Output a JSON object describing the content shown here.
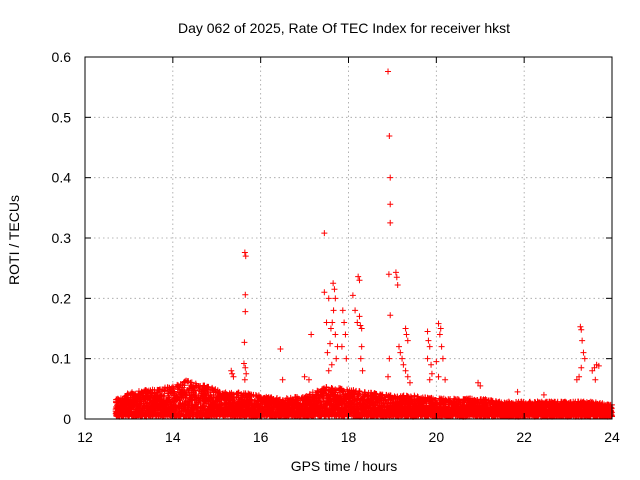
{
  "chart_data": {
    "type": "scatter",
    "title": "Day 062 of 2025, Rate Of TEC Index for receiver hkst",
    "xlabel": "GPS time / hours",
    "ylabel": "ROTI / TECUs",
    "xlim": [
      12,
      24
    ],
    "ylim": [
      0,
      0.6
    ],
    "xticks": [
      12,
      14,
      16,
      18,
      20,
      22,
      24
    ],
    "yticks": [
      0,
      0.1,
      0.2,
      0.3,
      0.4,
      0.5,
      0.6
    ],
    "xtick_labels": [
      "12",
      "14",
      "16",
      "18",
      "20",
      "22",
      "24"
    ],
    "ytick_labels": [
      "0",
      "0.1",
      "0.2",
      "0.3",
      "0.4",
      "0.5",
      "0.6"
    ],
    "grid": true,
    "marker": "+",
    "color": "#ff0000",
    "series": [
      {
        "name": "hkst",
        "baseline_envelope": [
          [
            12.7,
            0.03
          ],
          [
            13.0,
            0.04
          ],
          [
            13.5,
            0.045
          ],
          [
            14.0,
            0.05
          ],
          [
            14.3,
            0.06
          ],
          [
            14.8,
            0.05
          ],
          [
            15.2,
            0.04
          ],
          [
            15.6,
            0.04
          ],
          [
            16.0,
            0.035
          ],
          [
            16.5,
            0.03
          ],
          [
            17.0,
            0.035
          ],
          [
            17.5,
            0.05
          ],
          [
            18.0,
            0.045
          ],
          [
            18.5,
            0.04
          ],
          [
            19.0,
            0.035
          ],
          [
            19.5,
            0.035
          ],
          [
            20.0,
            0.03
          ],
          [
            20.5,
            0.03
          ],
          [
            21.0,
            0.03
          ],
          [
            21.5,
            0.025
          ],
          [
            22.0,
            0.025
          ],
          [
            22.5,
            0.025
          ],
          [
            23.0,
            0.025
          ],
          [
            23.5,
            0.025
          ],
          [
            24.0,
            0.02
          ]
        ],
        "points": [
          [
            15.33,
            0.08
          ],
          [
            15.35,
            0.075
          ],
          [
            15.38,
            0.07
          ],
          [
            15.64,
            0.276
          ],
          [
            15.66,
            0.27
          ],
          [
            15.65,
            0.206
          ],
          [
            15.65,
            0.178
          ],
          [
            15.63,
            0.127
          ],
          [
            15.62,
            0.092
          ],
          [
            15.65,
            0.085
          ],
          [
            15.67,
            0.075
          ],
          [
            15.64,
            0.065
          ],
          [
            16.45,
            0.116
          ],
          [
            16.5,
            0.065
          ],
          [
            17.0,
            0.07
          ],
          [
            17.1,
            0.065
          ],
          [
            17.15,
            0.14
          ],
          [
            17.45,
            0.308
          ],
          [
            17.45,
            0.21
          ],
          [
            17.5,
            0.16
          ],
          [
            17.55,
            0.2
          ],
          [
            17.6,
            0.15
          ],
          [
            17.58,
            0.125
          ],
          [
            17.52,
            0.11
          ],
          [
            17.62,
            0.09
          ],
          [
            17.55,
            0.08
          ],
          [
            17.65,
            0.225
          ],
          [
            17.68,
            0.215
          ],
          [
            17.7,
            0.2
          ],
          [
            17.66,
            0.18
          ],
          [
            17.63,
            0.16
          ],
          [
            17.7,
            0.14
          ],
          [
            17.75,
            0.12
          ],
          [
            17.72,
            0.1
          ],
          [
            17.87,
            0.18
          ],
          [
            17.9,
            0.16
          ],
          [
            17.93,
            0.14
          ],
          [
            17.85,
            0.12
          ],
          [
            17.95,
            0.1
          ],
          [
            18.1,
            0.205
          ],
          [
            18.15,
            0.18
          ],
          [
            18.2,
            0.16
          ],
          [
            18.22,
            0.236
          ],
          [
            18.25,
            0.23
          ],
          [
            18.25,
            0.17
          ],
          [
            18.27,
            0.155
          ],
          [
            18.3,
            0.15
          ],
          [
            18.3,
            0.12
          ],
          [
            18.28,
            0.1
          ],
          [
            18.32,
            0.08
          ],
          [
            18.9,
            0.576
          ],
          [
            18.93,
            0.469
          ],
          [
            18.95,
            0.4
          ],
          [
            18.95,
            0.356
          ],
          [
            18.95,
            0.325
          ],
          [
            18.92,
            0.24
          ],
          [
            18.95,
            0.172
          ],
          [
            18.93,
            0.1
          ],
          [
            18.9,
            0.07
          ],
          [
            19.08,
            0.243
          ],
          [
            19.1,
            0.235
          ],
          [
            19.12,
            0.222
          ],
          [
            19.15,
            0.12
          ],
          [
            19.18,
            0.11
          ],
          [
            19.22,
            0.1
          ],
          [
            19.25,
            0.09
          ],
          [
            19.3,
            0.15
          ],
          [
            19.32,
            0.14
          ],
          [
            19.35,
            0.13
          ],
          [
            19.3,
            0.08
          ],
          [
            19.35,
            0.07
          ],
          [
            19.4,
            0.06
          ],
          [
            19.8,
            0.145
          ],
          [
            19.82,
            0.13
          ],
          [
            19.85,
            0.12
          ],
          [
            19.8,
            0.1
          ],
          [
            19.88,
            0.09
          ],
          [
            19.9,
            0.075
          ],
          [
            19.85,
            0.065
          ],
          [
            20.05,
            0.158
          ],
          [
            20.1,
            0.15
          ],
          [
            20.08,
            0.14
          ],
          [
            20.12,
            0.12
          ],
          [
            20.15,
            0.1
          ],
          [
            20.0,
            0.095
          ],
          [
            20.05,
            0.07
          ],
          [
            20.2,
            0.065
          ],
          [
            20.95,
            0.06
          ],
          [
            21.0,
            0.055
          ],
          [
            21.85,
            0.045
          ],
          [
            22.45,
            0.04
          ],
          [
            23.2,
            0.065
          ],
          [
            23.25,
            0.07
          ],
          [
            23.28,
            0.153
          ],
          [
            23.3,
            0.148
          ],
          [
            23.32,
            0.13
          ],
          [
            23.35,
            0.11
          ],
          [
            23.38,
            0.1
          ],
          [
            23.3,
            0.085
          ],
          [
            23.55,
            0.08
          ],
          [
            23.6,
            0.085
          ],
          [
            23.65,
            0.09
          ],
          [
            23.7,
            0.088
          ],
          [
            23.62,
            0.065
          ],
          [
            23.95,
            0.015
          ],
          [
            23.97,
            0.012
          ],
          [
            23.98,
            0.01
          ]
        ]
      }
    ]
  }
}
